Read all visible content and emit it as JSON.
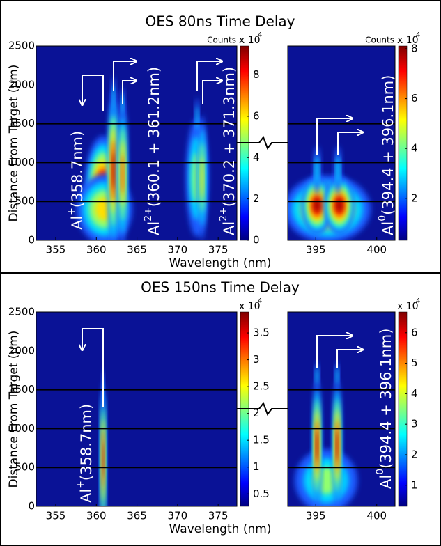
{
  "chart_data": [
    {
      "type": "heatmap",
      "title": "OES 80ns Time Delay",
      "xlabel": "Wavelength (nm)",
      "ylabel": "Distance From Target (μm)",
      "ylim": [
        0,
        2500
      ],
      "yticks": [
        0,
        500,
        1000,
        1500,
        2000,
        2500
      ],
      "hlines": [
        500,
        1000,
        1500
      ],
      "subplots": [
        {
          "xlim": [
            352.6,
            377.3
          ],
          "xticks": [
            355,
            360,
            365,
            370,
            375
          ],
          "colorbar": {
            "label": "Counts",
            "scale": "x 10",
            "exponent": "4",
            "lim": [
              0,
              9.4
            ],
            "ticks": [
              0,
              2,
              4,
              6,
              8
            ]
          },
          "annotations": [
            {
              "text": "Al",
              "superscript": "+",
              "rest": "(358.7nm)"
            },
            {
              "text": "Al",
              "superscript": "2+",
              "rest": "(360.1 + 361.2nm)"
            },
            {
              "text": "Al",
              "superscript": "2+",
              "rest": "(370.2 + 371.3nm)"
            }
          ]
        },
        {
          "xlim": [
            392.7,
            401.5
          ],
          "xticks": [
            395,
            400
          ],
          "colorbar": {
            "label": "Counts",
            "scale": "x 10",
            "exponent": "4",
            "lim": [
              0.32,
              8.11
            ],
            "ticks": [
              2,
              4,
              6,
              8
            ]
          },
          "annotations": [
            {
              "text": "Al",
              "superscript": "0",
              "rest": "(394.4 + 396.1nm)"
            }
          ]
        }
      ]
    },
    {
      "type": "heatmap",
      "title": "OES 150ns Time Delay",
      "xlabel": "Wavelength (nm)",
      "ylabel": "Distance From Target (μm)",
      "ylim": [
        0,
        2500
      ],
      "yticks": [
        0,
        500,
        1000,
        1500,
        2000,
        2500
      ],
      "hlines": [
        500,
        1000,
        1500
      ],
      "subplots": [
        {
          "xlim": [
            352.6,
            377.3
          ],
          "xticks": [
            355,
            360,
            365,
            370,
            375
          ],
          "colorbar": {
            "scale": "x 10",
            "exponent": "4",
            "lim": [
              0.27,
              3.89
            ],
            "ticks": [
              0.5,
              1,
              1.5,
              2,
              2.5,
              3,
              3.5
            ]
          },
          "annotations": [
            {
              "text": "Al",
              "superscript": "+",
              "rest": "(358.7nm)"
            }
          ]
        },
        {
          "xlim": [
            392.7,
            401.5
          ],
          "xticks": [
            395,
            400
          ],
          "colorbar": {
            "scale": "x 10",
            "exponent": "4",
            "lim": [
              0.31,
              6.68
            ],
            "ticks": [
              1,
              2,
              3,
              4,
              5,
              6
            ]
          },
          "annotations": [
            {
              "text": "Al",
              "superscript": "0",
              "rest": "(394.4 + 396.1nm)"
            }
          ]
        }
      ]
    }
  ]
}
